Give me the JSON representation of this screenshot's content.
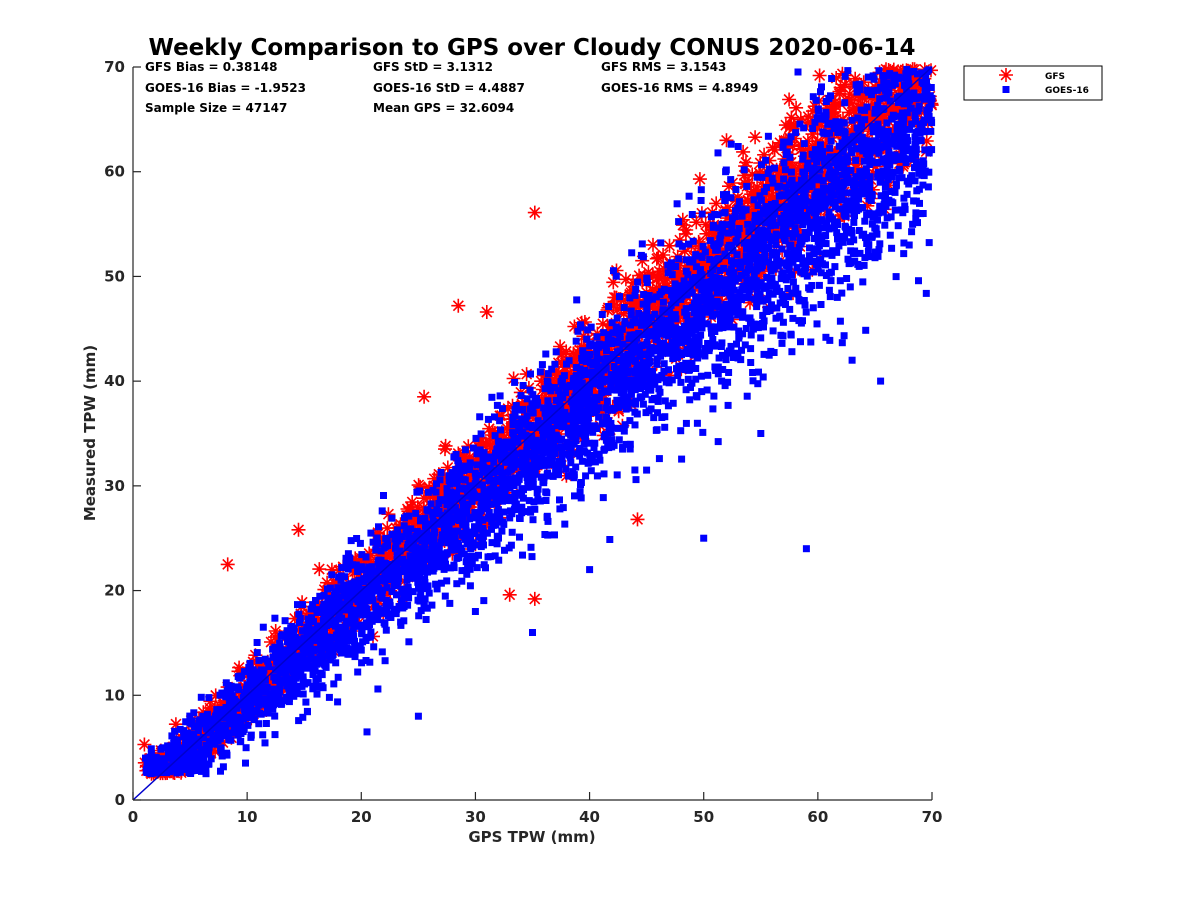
{
  "chart_data": {
    "type": "scatter",
    "title": "Weekly Comparison to GPS over Cloudy CONUS 2020-06-14",
    "xlabel": "GPS TPW (mm)",
    "ylabel": "Measured TPW (mm)",
    "xlim": [
      0,
      70
    ],
    "ylim": [
      0,
      70
    ],
    "xticks": [
      "0",
      "10",
      "20",
      "30",
      "40",
      "50",
      "60",
      "70"
    ],
    "yticks": [
      "0",
      "10",
      "20",
      "30",
      "40",
      "50",
      "60",
      "70"
    ],
    "grid": false,
    "legend_position": "outside-top-right",
    "reference_line": {
      "x": [
        0,
        70
      ],
      "y": [
        0,
        70
      ],
      "color": "#0000cc"
    },
    "stats": [
      "GFS Bias = 0.38148",
      "GFS StD = 3.1312",
      "GFS RMS = 3.1543",
      "GOES-16 Bias = -1.9523",
      "GOES-16 StD = 4.4887",
      "GOES-16 RMS = 4.8949",
      "Sample Size = 47147",
      "Mean GPS = 32.6094"
    ],
    "series": [
      {
        "name": "GFS",
        "marker": "asterisk",
        "color": "#ff0000",
        "center_offset": 0.4,
        "spread": 3.1,
        "x_range": [
          1,
          70
        ],
        "outliers": [
          [
            8.3,
            22.5
          ],
          [
            28.5,
            47.2
          ],
          [
            31,
            46.6
          ],
          [
            35.2,
            56.1
          ],
          [
            44.2,
            26.8
          ],
          [
            35.2,
            19.2
          ],
          [
            68.3,
            69.8
          ],
          [
            63,
            66.5
          ],
          [
            52,
            63
          ],
          [
            54.5,
            63.3
          ],
          [
            57.5,
            64.2
          ],
          [
            3,
            2.6
          ],
          [
            1,
            5.3
          ],
          [
            14.5,
            25.8
          ],
          [
            25.5,
            38.5
          ],
          [
            33,
            19.6
          ]
        ]
      },
      {
        "name": "GOES-16",
        "marker": "square",
        "color": "#0000ff",
        "center_offset": -1.95,
        "spread": 4.5,
        "x_range": [
          1,
          70
        ],
        "outliers": [
          [
            65.5,
            40
          ],
          [
            63,
            42
          ],
          [
            55,
            35
          ],
          [
            45,
            31.5
          ],
          [
            40,
            22
          ],
          [
            35,
            16
          ],
          [
            30,
            18
          ],
          [
            20.5,
            6.5
          ],
          [
            25,
            8
          ],
          [
            59,
            24
          ],
          [
            70,
            67
          ],
          [
            69,
            56
          ],
          [
            68,
            53
          ],
          [
            61.7,
            48
          ],
          [
            50,
            25
          ]
        ]
      }
    ]
  }
}
